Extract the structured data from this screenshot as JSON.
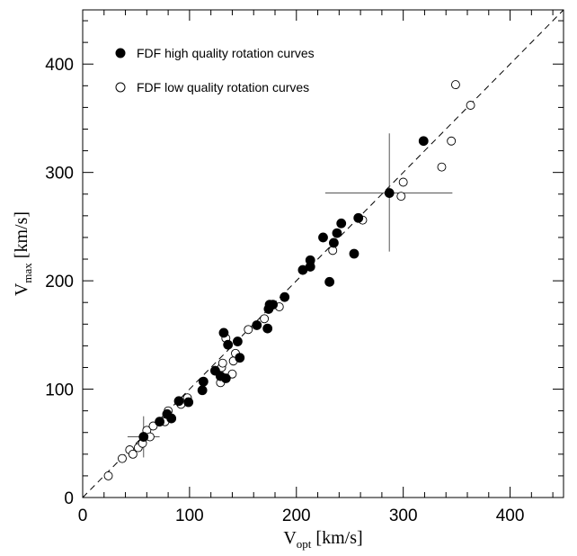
{
  "chart_data": {
    "type": "scatter",
    "xlabel": {
      "main": "V",
      "sub": "opt",
      "unit": " [km/s]"
    },
    "ylabel": {
      "main": "V",
      "sub": "max",
      "unit": " [km/s]"
    },
    "xlim": [
      0,
      450
    ],
    "ylim": [
      0,
      450
    ],
    "xticks": [
      0,
      100,
      200,
      300,
      400
    ],
    "yticks": [
      0,
      100,
      200,
      300,
      400
    ],
    "x_tick_labels": [
      "0",
      "100",
      "200",
      "300",
      "400"
    ],
    "y_tick_labels": [
      "0",
      "100",
      "200",
      "300",
      "400"
    ],
    "grid": false,
    "legend_position": "top-left",
    "reference_line": {
      "style": "dashed",
      "from": [
        0,
        0
      ],
      "to": [
        450,
        450
      ]
    },
    "error_bars": [
      {
        "x": 287,
        "y": 281,
        "x_range": [
          227,
          346
        ],
        "y_range": [
          227,
          336
        ]
      },
      {
        "x": 57,
        "y": 56,
        "x_range": [
          42,
          72
        ],
        "y_range": [
          37,
          75
        ]
      }
    ],
    "series": [
      {
        "name": "FDF high quality rotation curves",
        "marker": "filled-circle",
        "color": "#000000",
        "points": [
          [
            57,
            56
          ],
          [
            72,
            70
          ],
          [
            79,
            77
          ],
          [
            83,
            73
          ],
          [
            90,
            89
          ],
          [
            99,
            88
          ],
          [
            112,
            99
          ],
          [
            113,
            107
          ],
          [
            124,
            117
          ],
          [
            129,
            112
          ],
          [
            132,
            152
          ],
          [
            136,
            141
          ],
          [
            134,
            110
          ],
          [
            145,
            144
          ],
          [
            147,
            129
          ],
          [
            163,
            159
          ],
          [
            173,
            156
          ],
          [
            175,
            178
          ],
          [
            174,
            174
          ],
          [
            178,
            178
          ],
          [
            189,
            185
          ],
          [
            206,
            210
          ],
          [
            213,
            213
          ],
          [
            213,
            219
          ],
          [
            225,
            240
          ],
          [
            231,
            199
          ],
          [
            235,
            235
          ],
          [
            238,
            244
          ],
          [
            242,
            253
          ],
          [
            254,
            225
          ],
          [
            258,
            258
          ],
          [
            287,
            281
          ],
          [
            319,
            329
          ]
        ]
      },
      {
        "name": "FDF low quality rotation curves",
        "marker": "open-circle",
        "color": "#000000",
        "points": [
          [
            24,
            20
          ],
          [
            37,
            36
          ],
          [
            44,
            44
          ],
          [
            47,
            40
          ],
          [
            52,
            46
          ],
          [
            56,
            50
          ],
          [
            60,
            62
          ],
          [
            63,
            56
          ],
          [
            66,
            66
          ],
          [
            77,
            70
          ],
          [
            80,
            80
          ],
          [
            92,
            86
          ],
          [
            98,
            92
          ],
          [
            129,
            106
          ],
          [
            130,
            120
          ],
          [
            131,
            124
          ],
          [
            134,
            147
          ],
          [
            140,
            114
          ],
          [
            141,
            126
          ],
          [
            143,
            133
          ],
          [
            155,
            155
          ],
          [
            170,
            165
          ],
          [
            184,
            176
          ],
          [
            234,
            228
          ],
          [
            262,
            256
          ],
          [
            298,
            278
          ],
          [
            300,
            291
          ],
          [
            336,
            305
          ],
          [
            345,
            329
          ],
          [
            349,
            381
          ],
          [
            363,
            362
          ]
        ]
      }
    ]
  }
}
